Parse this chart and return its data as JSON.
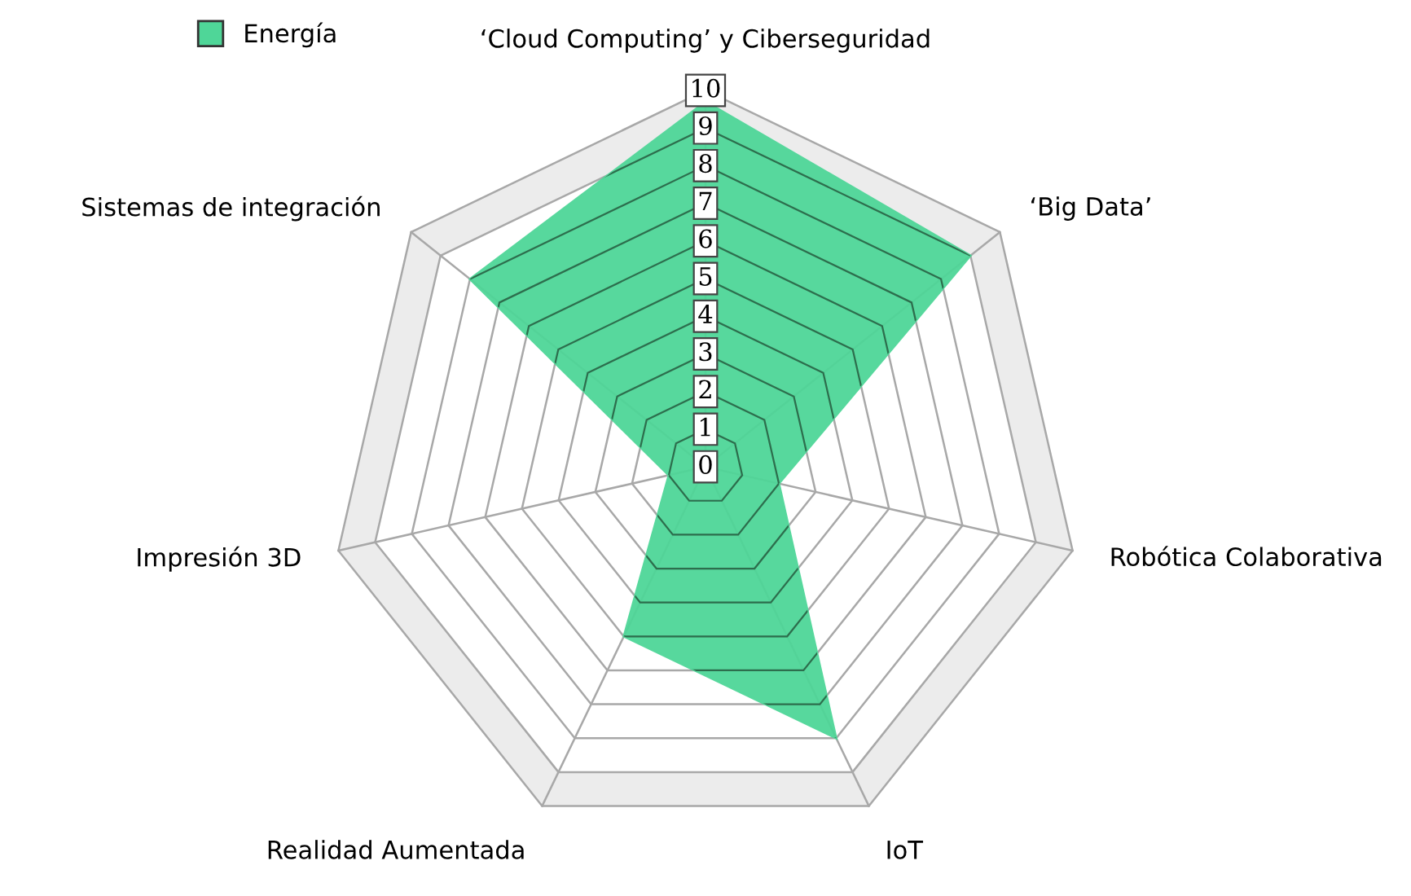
{
  "chart_data": {
    "type": "radar",
    "categories": [
      "‘Cloud Computing’ y Ciberseguridad",
      "‘Big Data’",
      "Robótica Colaborativa",
      "IoT",
      "Realidad Aumentada",
      "Impresión 3D",
      "Sistemas de integración"
    ],
    "series": [
      {
        "name": "Energía",
        "color": "#4fd698",
        "values": [
          9.7,
          9,
          2,
          8,
          5,
          1,
          8
        ]
      }
    ],
    "ylim": [
      0,
      10
    ],
    "yticks": [
      0,
      1,
      2,
      3,
      4,
      5,
      6,
      7,
      8,
      9,
      10
    ],
    "legend": "top left",
    "grid": true
  }
}
